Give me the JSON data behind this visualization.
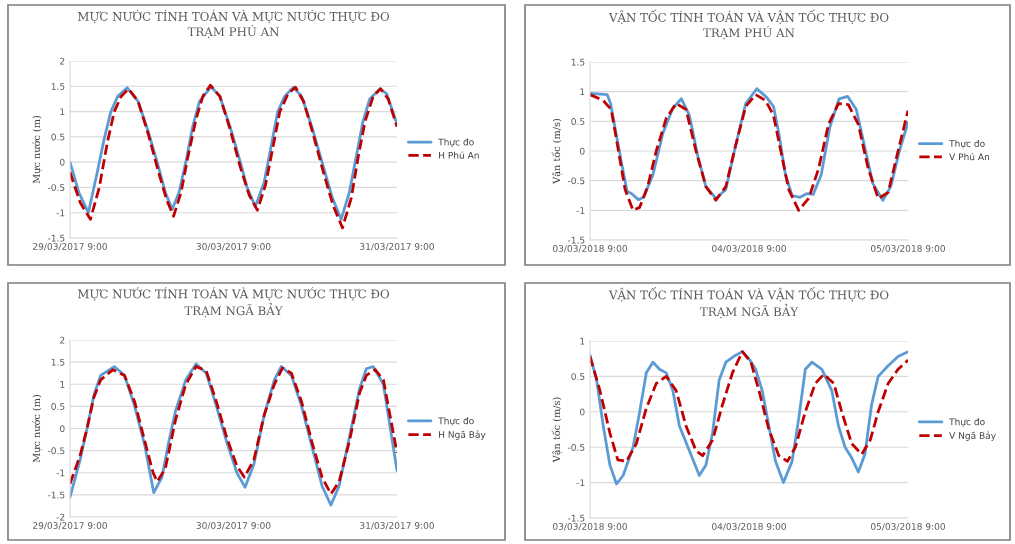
{
  "chart_data": [
    {
      "type": "line",
      "title": "MỰC NƯỚC TÍNH TOÁN VÀ MỰC NƯỚC THỰC ĐO\nTRẠM PHÚ AN",
      "ylabel": "Mực nước (m)",
      "xlim": [
        "2017-03-29T09:00",
        "2017-03-31T09:00"
      ],
      "xticks": [
        {
          "value": "2017-03-29T09:00",
          "label": "29/03/2017 9:00"
        },
        {
          "value": "2017-03-30T09:00",
          "label": "30/03/2017 9:00"
        },
        {
          "value": "2017-03-31T09:00",
          "label": "31/03/2017 9:00"
        }
      ],
      "ylim": [
        -1.5,
        2
      ],
      "yticks": [
        -1.5,
        -1,
        -0.5,
        0,
        0.5,
        1,
        1.5,
        2
      ],
      "grid": "y",
      "legend": "right",
      "series": [
        {
          "name": "Thực đo",
          "color": "#5b9bd5",
          "line_style": "solid",
          "x": [
            "2017-03-29T09:00",
            "2017-03-29T10:18",
            "2017-03-29T11:42",
            "2017-03-29T13:00",
            "2017-03-29T14:00",
            "2017-03-29T15:00",
            "2017-03-29T16:00",
            "2017-03-29T17:24",
            "2017-03-29T19:00",
            "2017-03-29T20:30",
            "2017-03-29T22:00",
            "2017-03-29T23:00",
            "2017-03-30T00:00",
            "2017-03-30T01:00",
            "2017-03-30T02:00",
            "2017-03-30T03:00",
            "2017-03-30T04:00",
            "2017-03-30T05:42",
            "2017-03-30T07:00",
            "2017-03-30T08:30",
            "2017-03-30T10:00",
            "2017-03-30T11:00",
            "2017-03-30T12:12",
            "2017-03-30T13:30",
            "2017-03-30T14:30",
            "2017-03-30T15:30",
            "2017-03-30T16:30",
            "2017-03-30T17:48",
            "2017-03-30T19:00",
            "2017-03-30T20:30",
            "2017-03-30T22:00",
            "2017-03-30T23:30",
            "2017-03-31T00:48",
            "2017-03-31T02:00",
            "2017-03-31T03:00",
            "2017-03-31T04:00",
            "2017-03-31T05:00",
            "2017-03-31T06:30",
            "2017-03-31T07:30",
            "2017-03-31T09:00"
          ],
          "values": [
            0,
            -0.6,
            -1.0,
            -0.2,
            0.45,
            1.0,
            1.3,
            1.47,
            1.2,
            0.6,
            -0.1,
            -0.6,
            -0.93,
            -0.6,
            0,
            0.7,
            1.2,
            1.49,
            1.3,
            0.7,
            0,
            -0.5,
            -0.88,
            -0.4,
            0.3,
            1.0,
            1.3,
            1.48,
            1.3,
            0.7,
            0,
            -0.7,
            -1.13,
            -0.6,
            0.1,
            0.8,
            1.25,
            1.45,
            1.35,
            0.75
          ]
        },
        {
          "name": "H Phú An",
          "color": "#c00000",
          "line_style": "dashed",
          "x": [
            "2017-03-29T09:00",
            "2017-03-29T10:30",
            "2017-03-29T12:00",
            "2017-03-29T13:18",
            "2017-03-29T14:30",
            "2017-03-29T15:30",
            "2017-03-29T16:30",
            "2017-03-29T17:36",
            "2017-03-29T19:00",
            "2017-03-29T20:30",
            "2017-03-29T22:00",
            "2017-03-29T23:12",
            "2017-03-30T00:12",
            "2017-03-30T01:18",
            "2017-03-30T02:18",
            "2017-03-30T03:30",
            "2017-03-30T04:30",
            "2017-03-30T05:36",
            "2017-03-30T07:00",
            "2017-03-30T08:30",
            "2017-03-30T10:00",
            "2017-03-30T11:18",
            "2017-03-30T12:30",
            "2017-03-30T13:42",
            "2017-03-30T14:48",
            "2017-03-30T15:48",
            "2017-03-30T17:00",
            "2017-03-30T18:06",
            "2017-03-30T19:18",
            "2017-03-30T20:42",
            "2017-03-30T22:12",
            "2017-03-30T23:36",
            "2017-03-31T01:00",
            "2017-03-31T02:18",
            "2017-03-31T03:18",
            "2017-03-31T04:18",
            "2017-03-31T05:30",
            "2017-03-31T06:36",
            "2017-03-31T07:42",
            "2017-03-31T09:00"
          ],
          "values": [
            -0.2,
            -0.8,
            -1.13,
            -0.5,
            0.4,
            1.0,
            1.3,
            1.45,
            1.2,
            0.55,
            -0.2,
            -0.75,
            -1.07,
            -0.6,
            0.1,
            0.85,
            1.3,
            1.52,
            1.3,
            0.65,
            -0.1,
            -0.65,
            -0.95,
            -0.45,
            0.3,
            1.0,
            1.35,
            1.48,
            1.2,
            0.55,
            -0.2,
            -0.85,
            -1.3,
            -0.7,
            0.1,
            0.8,
            1.3,
            1.45,
            1.25,
            0.7
          ]
        }
      ]
    },
    {
      "type": "line",
      "title": "VẬN TỐC TÍNH TOÁN VÀ VẬN TỐC THỰC ĐO\nTRẠM PHÚ AN",
      "ylabel": "Vận tốc (m/s)",
      "xlim": [
        "2018-03-03T09:00",
        "2018-03-05T09:00"
      ],
      "xticks": [
        {
          "value": "2018-03-03T09:00",
          "label": "03/03/2018 9:00"
        },
        {
          "value": "2018-03-04T09:00",
          "label": "04/03/2018 9:00"
        },
        {
          "value": "2018-03-05T09:00",
          "label": "05/03/2018 9:00"
        }
      ],
      "ylim": [
        -1.5,
        1.5
      ],
      "yticks": [
        -1.5,
        -1,
        -0.5,
        0,
        0.5,
        1,
        1.5
      ],
      "grid": "y",
      "legend": "right",
      "series": [
        {
          "name": "Thực đo",
          "color": "#5b9bd5",
          "line_style": "solid",
          "x": [
            "2018-03-03T09:00",
            "2018-03-03T11:36",
            "2018-03-03T12:06",
            "2018-03-03T13:06",
            "2018-03-03T14:06",
            "2018-03-03T14:36",
            "2018-03-03T15:18",
            "2018-03-03T16:18",
            "2018-03-03T17:06",
            "2018-03-03T18:30",
            "2018-03-03T20:00",
            "2018-03-03T21:30",
            "2018-03-03T22:48",
            "2018-03-04T00:00",
            "2018-03-04T01:18",
            "2018-03-04T02:30",
            "2018-03-04T04:00",
            "2018-03-04T05:30",
            "2018-03-04T07:00",
            "2018-03-04T08:30",
            "2018-03-04T10:12",
            "2018-03-04T11:42",
            "2018-03-04T12:42",
            "2018-03-04T13:30",
            "2018-03-04T14:30",
            "2018-03-04T15:30",
            "2018-03-04T16:42",
            "2018-03-04T17:42",
            "2018-03-04T18:42",
            "2018-03-04T19:54",
            "2018-03-04T21:12",
            "2018-03-04T22:36",
            "2018-03-04T23:54",
            "2018-03-05T01:12",
            "2018-03-05T02:24",
            "2018-03-05T03:42",
            "2018-03-05T05:12",
            "2018-03-05T06:24",
            "2018-03-05T07:42",
            "2018-03-05T09:00"
          ],
          "values": [
            0.97,
            0.95,
            0.8,
            0.2,
            -0.4,
            -0.68,
            -0.72,
            -0.82,
            -0.78,
            -0.4,
            0.3,
            0.72,
            0.88,
            0.6,
            -0.1,
            -0.6,
            -0.8,
            -0.65,
            0.1,
            0.8,
            1.05,
            0.9,
            0.75,
            0.3,
            -0.4,
            -0.75,
            -0.78,
            -0.72,
            -0.73,
            -0.4,
            0.4,
            0.88,
            0.92,
            0.7,
            0.1,
            -0.55,
            -0.83,
            -0.6,
            0,
            0.48
          ]
        },
        {
          "name": "V Phú An",
          "color": "#c00000",
          "line_style": "dashed",
          "x": [
            "2018-03-03T09:00",
            "2018-03-03T11:00",
            "2018-03-03T12:12",
            "2018-03-03T13:18",
            "2018-03-03T14:18",
            "2018-03-03T15:30",
            "2018-03-03T16:30",
            "2018-03-03T17:42",
            "2018-03-03T19:00",
            "2018-03-03T20:30",
            "2018-03-03T22:00",
            "2018-03-03T23:30",
            "2018-03-04T01:00",
            "2018-03-04T02:30",
            "2018-03-04T04:00",
            "2018-03-04T05:30",
            "2018-03-04T07:00",
            "2018-03-04T08:30",
            "2018-03-04T10:00",
            "2018-03-04T11:30",
            "2018-03-04T12:42",
            "2018-03-04T13:48",
            "2018-03-04T15:00",
            "2018-03-04T16:30",
            "2018-03-04T18:00",
            "2018-03-04T19:30",
            "2018-03-04T21:00",
            "2018-03-04T22:30",
            "2018-03-05T00:00",
            "2018-03-05T01:30",
            "2018-03-05T03:00",
            "2018-03-05T04:30",
            "2018-03-05T06:00",
            "2018-03-05T07:30",
            "2018-03-05T09:00"
          ],
          "values": [
            0.95,
            0.85,
            0.7,
            0,
            -0.65,
            -1.0,
            -0.95,
            -0.6,
            0,
            0.55,
            0.8,
            0.7,
            0,
            -0.6,
            -0.83,
            -0.6,
            0.1,
            0.75,
            0.95,
            0.85,
            0.6,
            0,
            -0.65,
            -1.0,
            -0.8,
            -0.3,
            0.45,
            0.8,
            0.78,
            0.45,
            -0.3,
            -0.8,
            -0.7,
            0,
            0.68
          ]
        }
      ]
    },
    {
      "type": "line",
      "title": "MỰC NƯỚC TÍNH TOÁN VÀ MỰC NƯỚC THỰC ĐO\nTRẠM NGÃ BẢY",
      "ylabel": "Mực nước (m)",
      "xlim": [
        "2017-03-29T09:00",
        "2017-03-31T09:00"
      ],
      "xticks": [
        {
          "value": "2017-03-29T09:00",
          "label": "29/03/2017 9:00"
        },
        {
          "value": "2017-03-30T09:00",
          "label": "30/03/2017 9:00"
        },
        {
          "value": "2017-03-31T09:00",
          "label": "31/03/2017 9:00"
        }
      ],
      "ylim": [
        -2,
        2
      ],
      "yticks": [
        -2,
        -1.5,
        -1,
        -0.5,
        0,
        0.5,
        1,
        1.5,
        2
      ],
      "grid": "y",
      "legend": "right",
      "series": [
        {
          "name": "Thực đo",
          "color": "#5b9bd5",
          "line_style": "solid",
          "x": [
            "2017-03-29T09:00",
            "2017-03-29T10:30",
            "2017-03-29T11:30",
            "2017-03-29T12:30",
            "2017-03-29T13:30",
            "2017-03-29T15:30",
            "2017-03-29T17:00",
            "2017-03-29T18:30",
            "2017-03-29T20:00",
            "2017-03-29T21:18",
            "2017-03-29T22:30",
            "2017-03-29T23:30",
            "2017-03-30T00:30",
            "2017-03-30T02:00",
            "2017-03-30T03:30",
            "2017-03-30T05:00",
            "2017-03-30T06:30",
            "2017-03-30T08:00",
            "2017-03-30T09:30",
            "2017-03-30T10:42",
            "2017-03-30T12:00",
            "2017-03-30T13:30",
            "2017-03-30T15:00",
            "2017-03-30T16:00",
            "2017-03-30T17:30",
            "2017-03-30T19:00",
            "2017-03-30T20:30",
            "2017-03-30T22:00",
            "2017-03-30T23:18",
            "2017-03-31T00:30",
            "2017-03-31T02:00",
            "2017-03-31T03:30",
            "2017-03-31T04:30",
            "2017-03-31T05:30",
            "2017-03-31T07:00",
            "2017-03-31T09:00"
          ],
          "values": [
            -1.55,
            -0.7,
            0,
            0.75,
            1.2,
            1.4,
            1.2,
            0.5,
            -0.4,
            -1.45,
            -1.1,
            -0.3,
            0.4,
            1.1,
            1.46,
            1.25,
            0.5,
            -0.3,
            -1.0,
            -1.33,
            -0.8,
            0.3,
            1.1,
            1.4,
            1.2,
            0.5,
            -0.4,
            -1.3,
            -1.73,
            -1.3,
            -0.2,
            0.9,
            1.35,
            1.4,
            1.0,
            -0.95
          ]
        },
        {
          "name": "H Ngã Bảy",
          "color": "#c00000",
          "line_style": "dashed",
          "x": [
            "2017-03-29T09:00",
            "2017-03-29T10:30",
            "2017-03-29T11:30",
            "2017-03-29T12:30",
            "2017-03-29T13:30",
            "2017-03-29T15:18",
            "2017-03-29T17:00",
            "2017-03-29T18:30",
            "2017-03-29T20:00",
            "2017-03-29T21:12",
            "2017-03-29T21:48",
            "2017-03-29T23:00",
            "2017-03-30T00:30",
            "2017-03-30T02:00",
            "2017-03-30T03:30",
            "2017-03-30T05:00",
            "2017-03-30T06:30",
            "2017-03-30T08:00",
            "2017-03-30T09:30",
            "2017-03-30T10:36",
            "2017-03-30T12:00",
            "2017-03-30T13:30",
            "2017-03-30T15:00",
            "2017-03-30T16:12",
            "2017-03-30T17:30",
            "2017-03-30T19:00",
            "2017-03-30T20:30",
            "2017-03-30T22:00",
            "2017-03-30T23:18",
            "2017-03-31T00:30",
            "2017-03-31T02:00",
            "2017-03-31T03:30",
            "2017-03-31T04:30",
            "2017-03-31T05:48",
            "2017-03-31T07:00",
            "2017-03-31T09:00"
          ],
          "values": [
            -1.25,
            -0.6,
            0,
            0.7,
            1.1,
            1.33,
            1.2,
            0.6,
            -0.3,
            -1.0,
            -1.2,
            -0.9,
            0.2,
            1.0,
            1.4,
            1.3,
            0.6,
            -0.2,
            -0.85,
            -1.1,
            -0.7,
            0.3,
            1.0,
            1.37,
            1.25,
            0.6,
            -0.3,
            -1.1,
            -1.48,
            -1.2,
            -0.3,
            0.8,
            1.2,
            1.33,
            1.1,
            -0.55
          ]
        }
      ]
    },
    {
      "type": "line",
      "title": "VẬN TỐC TÍNH TOÁN VÀ VẬN TỐC THỰC ĐO\nTRẠM NGÃ BẢY",
      "ylabel": "Vận tốc (m/s)",
      "xlim": [
        "2018-03-03T09:00",
        "2018-03-05T09:00"
      ],
      "xticks": [
        {
          "value": "2018-03-03T09:00",
          "label": "03/03/2018 9:00"
        },
        {
          "value": "2018-03-04T09:00",
          "label": "04/03/2018 9:00"
        },
        {
          "value": "2018-03-05T09:00",
          "label": "05/03/2018 9:00"
        }
      ],
      "ylim": [
        -1.5,
        1
      ],
      "yticks": [
        -1.5,
        -1,
        -0.5,
        0,
        0.5,
        1
      ],
      "grid": "y",
      "legend": "right",
      "series": [
        {
          "name": "Thực đo",
          "color": "#5b9bd5",
          "line_style": "solid",
          "x": [
            "2018-03-03T09:00",
            "2018-03-03T10:00",
            "2018-03-03T11:00",
            "2018-03-03T12:00",
            "2018-03-03T13:00",
            "2018-03-03T14:00",
            "2018-03-03T15:30",
            "2018-03-03T16:30",
            "2018-03-03T17:30",
            "2018-03-03T18:30",
            "2018-03-03T19:30",
            "2018-03-03T20:30",
            "2018-03-03T21:30",
            "2018-03-03T22:30",
            "2018-03-04T00:00",
            "2018-03-04T01:30",
            "2018-03-04T02:30",
            "2018-03-04T03:30",
            "2018-03-04T04:30",
            "2018-03-04T05:30",
            "2018-03-04T07:00",
            "2018-03-04T08:00",
            "2018-03-04T09:00",
            "2018-03-04T10:00",
            "2018-03-04T11:00",
            "2018-03-04T12:00",
            "2018-03-04T13:00",
            "2018-03-04T14:12",
            "2018-03-04T15:30",
            "2018-03-04T16:30",
            "2018-03-04T17:30",
            "2018-03-04T18:30",
            "2018-03-04T20:00",
            "2018-03-04T21:30",
            "2018-03-04T22:30",
            "2018-03-04T23:30",
            "2018-03-05T00:30",
            "2018-03-05T01:30",
            "2018-03-05T02:30",
            "2018-03-05T03:30",
            "2018-03-05T04:30",
            "2018-03-05T06:00",
            "2018-03-05T07:30",
            "2018-03-05T09:00"
          ],
          "values": [
            0.8,
            0.45,
            -0.2,
            -0.75,
            -1.02,
            -0.9,
            -0.5,
            0,
            0.55,
            0.7,
            0.6,
            0.55,
            0.3,
            -0.2,
            -0.55,
            -0.9,
            -0.75,
            -0.3,
            0.45,
            0.7,
            0.8,
            0.85,
            0.75,
            0.6,
            0.3,
            -0.2,
            -0.7,
            -1.0,
            -0.7,
            -0.1,
            0.6,
            0.7,
            0.6,
            0.3,
            -0.2,
            -0.5,
            -0.65,
            -0.85,
            -0.6,
            0.1,
            0.5,
            0.65,
            0.78,
            0.85
          ]
        },
        {
          "name": "V Ngã Bảy",
          "color": "#c00000",
          "line_style": "dashed",
          "x": [
            "2018-03-03T09:00",
            "2018-03-03T10:30",
            "2018-03-03T12:00",
            "2018-03-03T13:12",
            "2018-03-03T14:30",
            "2018-03-03T16:00",
            "2018-03-03T17:30",
            "2018-03-03T19:00",
            "2018-03-03T20:30",
            "2018-03-03T22:00",
            "2018-03-03T23:30",
            "2018-03-04T01:00",
            "2018-03-04T02:00",
            "2018-03-04T03:30",
            "2018-03-04T05:00",
            "2018-03-04T06:30",
            "2018-03-04T08:00",
            "2018-03-04T09:18",
            "2018-03-04T10:30",
            "2018-03-04T12:00",
            "2018-03-04T13:30",
            "2018-03-04T14:48",
            "2018-03-04T16:00",
            "2018-03-04T17:30",
            "2018-03-04T19:00",
            "2018-03-04T20:18",
            "2018-03-04T21:48",
            "2018-03-04T23:00",
            "2018-03-05T00:30",
            "2018-03-05T02:00",
            "2018-03-05T03:18",
            "2018-03-05T04:30",
            "2018-03-05T06:00",
            "2018-03-05T07:30",
            "2018-03-05T09:00"
          ],
          "values": [
            0.78,
            0.3,
            -0.3,
            -0.68,
            -0.7,
            -0.45,
            0.05,
            0.4,
            0.5,
            0.3,
            -0.2,
            -0.55,
            -0.62,
            -0.4,
            0.1,
            0.55,
            0.85,
            0.7,
            0.3,
            -0.25,
            -0.62,
            -0.7,
            -0.5,
            0,
            0.4,
            0.53,
            0.4,
            0,
            -0.45,
            -0.6,
            -0.4,
            0,
            0.4,
            0.6,
            0.73
          ]
        }
      ]
    }
  ]
}
